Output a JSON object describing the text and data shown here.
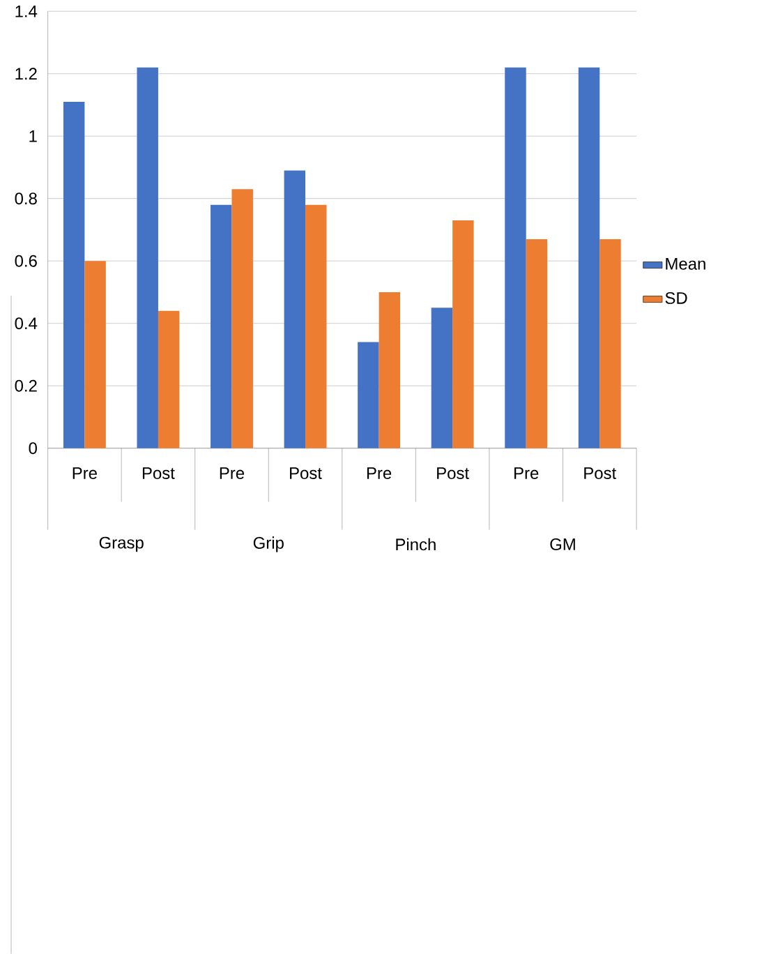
{
  "chart_data": {
    "type": "bar",
    "categories": [
      "Pre",
      "Post",
      "Pre",
      "Post",
      "Pre",
      "Post",
      "Pre",
      "Post"
    ],
    "series": [
      {
        "name": "Mean",
        "color": "#4472c4",
        "values": [
          1.11,
          1.22,
          0.78,
          0.89,
          0.34,
          0.45,
          1.22,
          1.22
        ]
      },
      {
        "name": "SD",
        "color": "#ed7d31",
        "values": [
          0.6,
          0.44,
          0.83,
          0.78,
          0.5,
          0.73,
          0.67,
          0.67
        ]
      }
    ],
    "ylim": [
      0,
      1.4
    ],
    "yticks": [
      0,
      0.2,
      0.4,
      0.6,
      0.8,
      1,
      1.2,
      1.4
    ],
    "grid": "y",
    "legend": "right",
    "annotations": [
      "Grasp",
      "Grip",
      "Pinch",
      "GM"
    ]
  }
}
